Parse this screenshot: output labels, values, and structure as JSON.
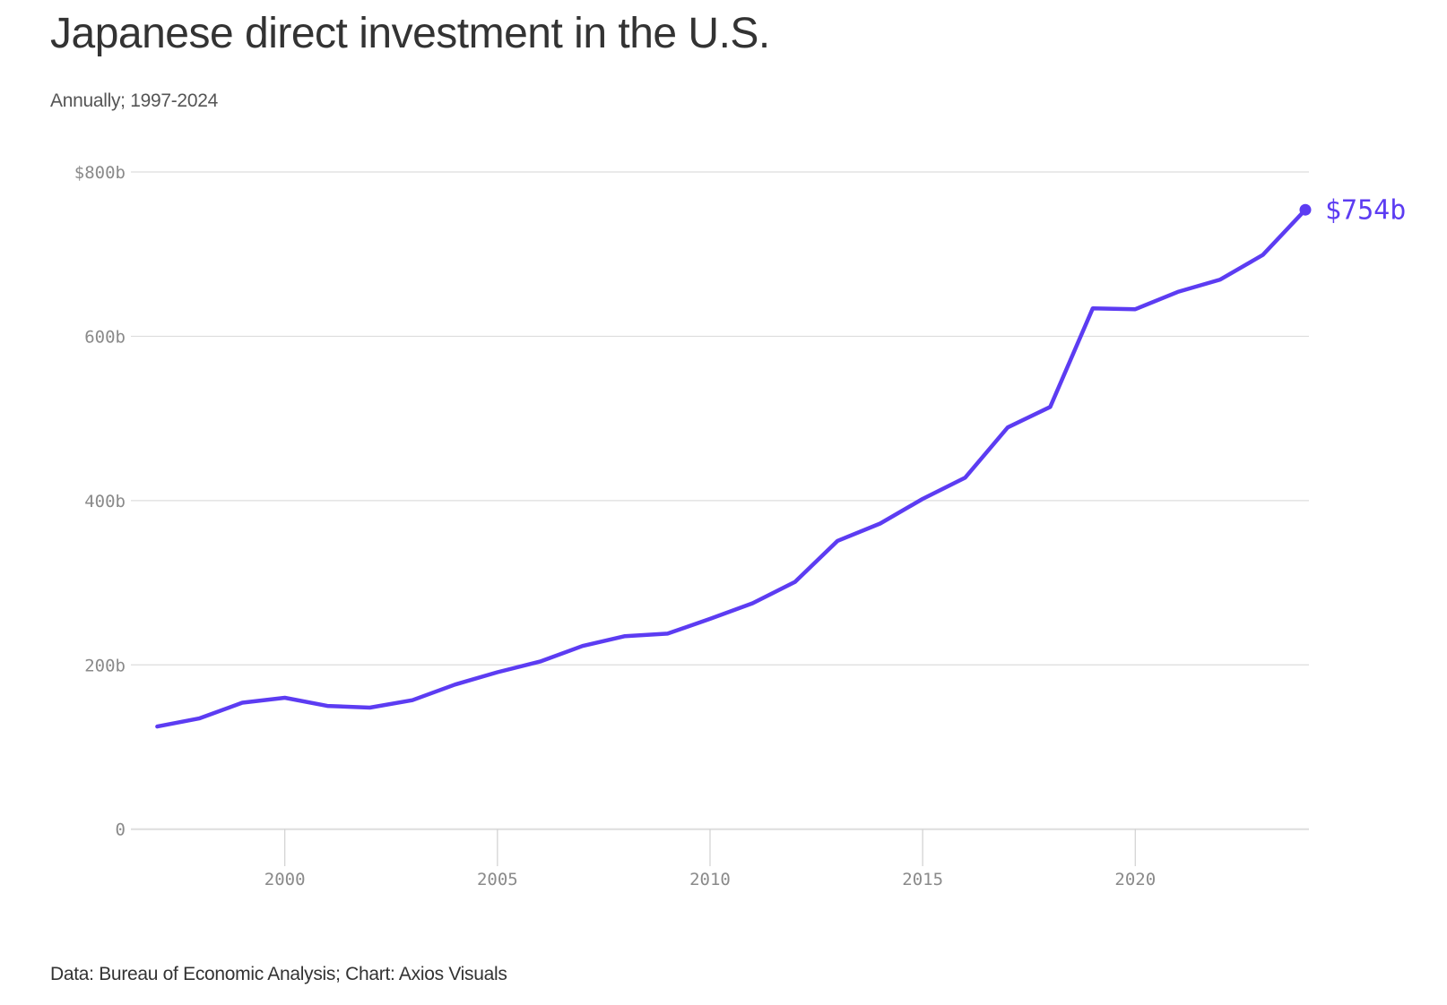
{
  "header": {
    "title": "Japanese direct investment in the U.S.",
    "subtitle": "Annually; 1997-2024"
  },
  "footer": {
    "source": "Data: Bureau of Economic Analysis; Chart: Axios Visuals"
  },
  "colors": {
    "line": "#5c3cf2",
    "grid": "#dddddd",
    "tick_text": "#8a8a8a"
  },
  "chart_data": {
    "type": "line",
    "title": "Japanese direct investment in the U.S.",
    "subtitle": "Annually; 1997-2024",
    "xlabel": "",
    "ylabel": "",
    "x": [
      1997,
      1998,
      1999,
      2000,
      2001,
      2002,
      2003,
      2004,
      2005,
      2006,
      2007,
      2008,
      2009,
      2010,
      2011,
      2012,
      2013,
      2014,
      2015,
      2016,
      2017,
      2018,
      2019,
      2020,
      2021,
      2022,
      2023,
      2024
    ],
    "series": [
      {
        "name": "Japanese direct investment (billions USD)",
        "values": [
          125,
          135,
          154,
          160,
          150,
          148,
          157,
          176,
          191,
          204,
          223,
          235,
          238,
          256,
          275,
          301,
          351,
          372,
          402,
          428,
          489,
          514,
          634,
          633,
          654,
          669,
          699,
          754
        ]
      }
    ],
    "xlim": [
      1997,
      2024
    ],
    "ylim": [
      0,
      800
    ],
    "yticks": [
      0,
      200,
      400,
      600,
      800
    ],
    "ytick_labels": [
      "0",
      "200b",
      "400b",
      "600b",
      "$800b"
    ],
    "xticks": [
      2000,
      2005,
      2010,
      2015,
      2020
    ],
    "xtick_labels": [
      "2000",
      "2005",
      "2010",
      "2015",
      "2020"
    ],
    "grid": "horizontal",
    "legend": "none",
    "annotations": [
      {
        "x": 2024,
        "y": 754,
        "text": "$754b"
      }
    ]
  }
}
